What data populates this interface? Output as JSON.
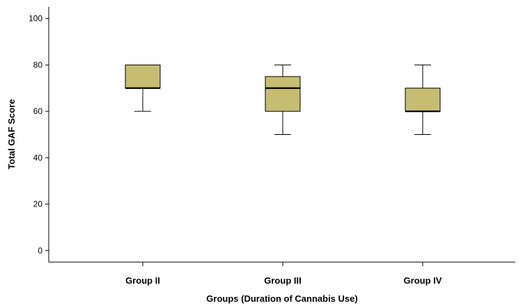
{
  "chart_data": {
    "type": "boxplot",
    "xlabel": "Groups (Duration of Cannabis Use)",
    "ylabel": "Total GAF Score",
    "ylim": [
      -5,
      105
    ],
    "yticks": [
      0,
      20,
      40,
      60,
      80,
      100
    ],
    "categories": [
      "Group II",
      "Group III",
      "Group IV"
    ],
    "boxes": [
      {
        "min": 60,
        "q1": 70,
        "median": 70,
        "q3": 80,
        "max": 80
      },
      {
        "min": 50,
        "q1": 60,
        "median": 70,
        "q3": 75,
        "max": 80
      },
      {
        "min": 50,
        "q1": 60,
        "median": 60,
        "q3": 70,
        "max": 80
      }
    ],
    "box_color": "#c6bd72",
    "grid": false
  }
}
